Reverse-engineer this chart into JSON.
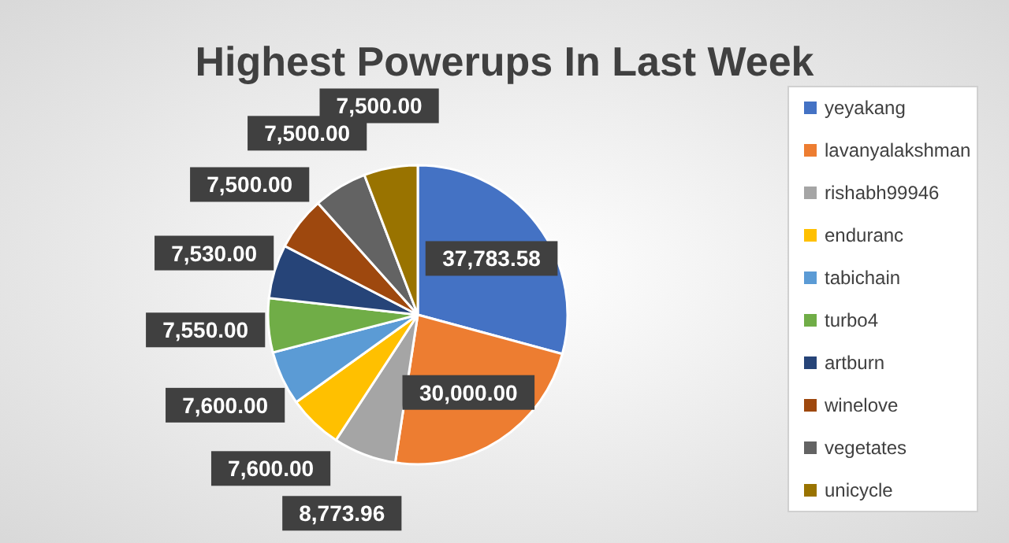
{
  "chart_data": {
    "type": "pie",
    "title": "Highest Powerups In Last Week",
    "categories": [
      "yeyakang",
      "lavanyalakshman",
      "rishabh99946",
      "enduranc",
      "tabichain",
      "turbo4",
      "artburn",
      "winelove",
      "vegetates",
      "unicycle"
    ],
    "values": [
      37783.58,
      30000,
      8773.96,
      7600,
      7600,
      7550,
      7530,
      7500,
      7500,
      7500
    ],
    "colors": [
      "#4472c4",
      "#ed7d31",
      "#a5a5a5",
      "#ffc000",
      "#5b9bd5",
      "#70ad47",
      "#264478",
      "#9e480e",
      "#636363",
      "#997300"
    ],
    "value_labels": [
      "37,783.58",
      "30,000.00",
      "8,773.96",
      "7,600.00",
      "7,600.00",
      "7,550.00",
      "7,530.00",
      "7,500.00",
      "7,500.00",
      "7,500.00"
    ],
    "legend": "right"
  }
}
